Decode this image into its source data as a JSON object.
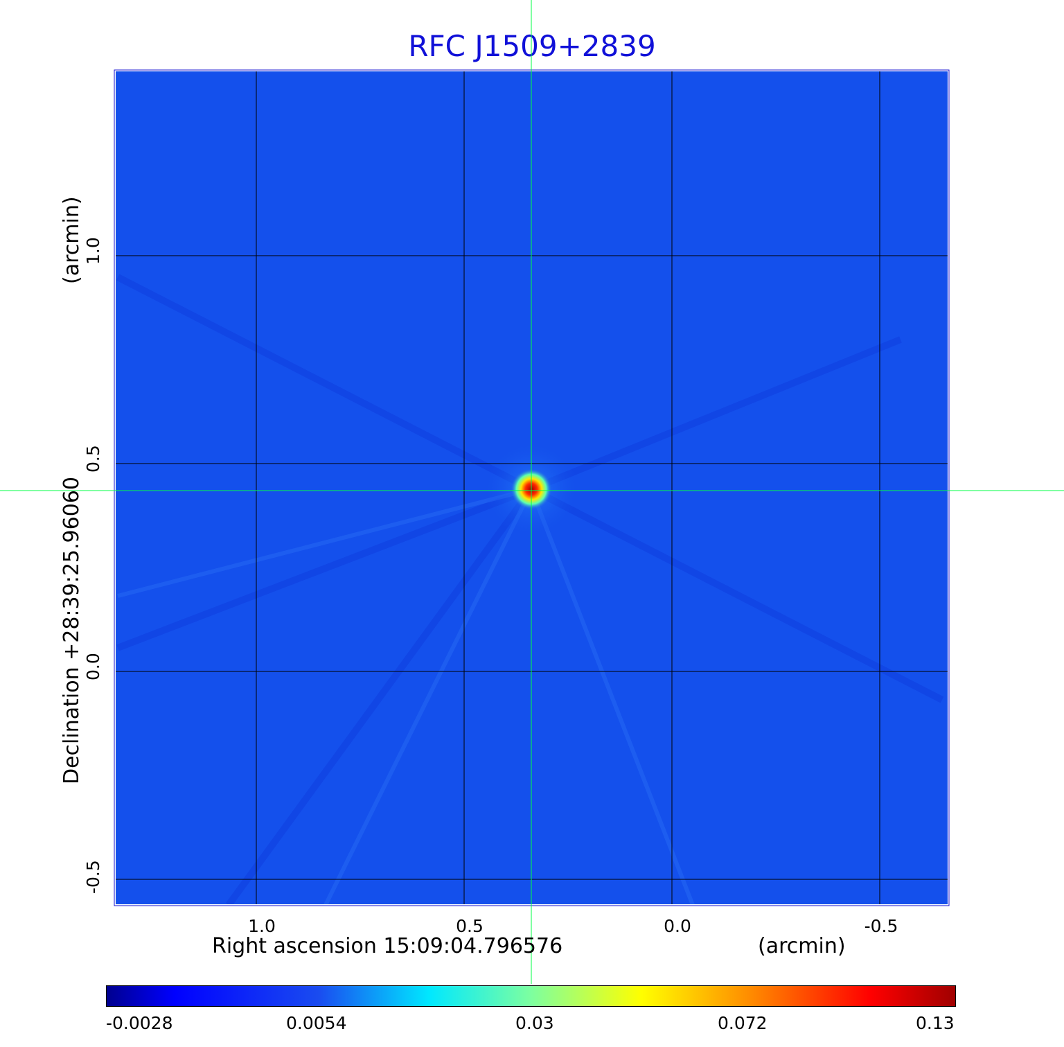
{
  "title": "RFC J1509+2839",
  "xaxis": {
    "label": "Right ascension  15:09:04.796576",
    "unit": "(arcmin)",
    "ticks": [
      "1.0",
      "0.5",
      "0.0",
      "-0.5"
    ]
  },
  "yaxis": {
    "label": "Declination  +28:39:25.96060",
    "unit": "(arcmin)",
    "ticks": [
      "1.0",
      "0.5",
      "0.0",
      "-0.5"
    ]
  },
  "colorbar": {
    "ticks": [
      "-0.0028",
      "0.0054",
      "0.03",
      "0.072",
      "0.13"
    ],
    "colormap": "jet"
  },
  "colors": {
    "title": "#1010d8",
    "background_map": "#1450ec",
    "crosshair": "#00ff44",
    "grid": "#000000"
  }
}
